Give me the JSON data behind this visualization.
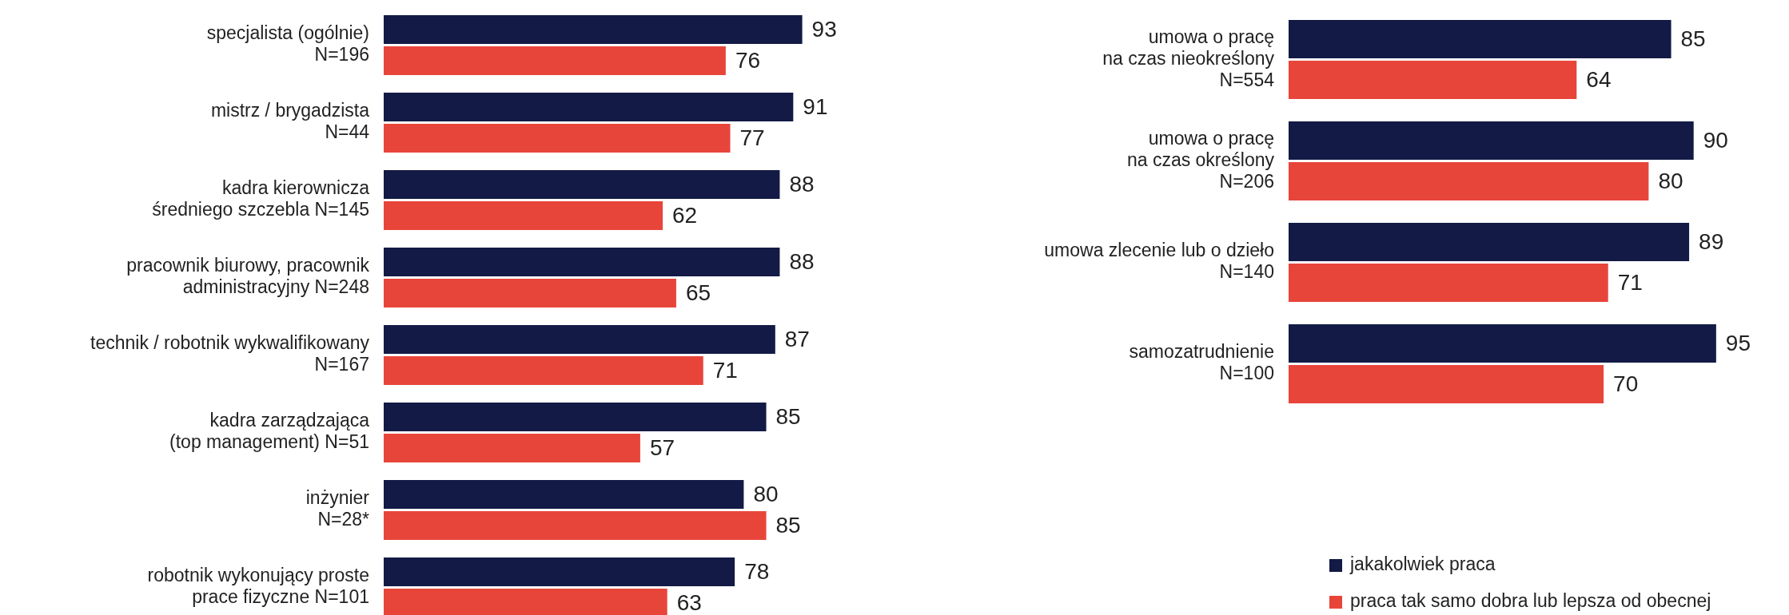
{
  "chart_data": [
    {
      "type": "bar",
      "orientation": "horizontal",
      "data_labels": true,
      "legend": false,
      "categories": [
        "specjalista (ogólnie)\nN=196",
        "mistrz / brygadzista\nN=44",
        "kadra kierownicza\nśredniego szczebla N=145",
        "pracownik biurowy, pracownik\nadministracyjny N=248",
        "technik / robotnik wykwalifikowany\nN=167",
        "kadra zarządzająca\n(top management) N=51",
        "inżynier\nN=28*",
        "robotnik wykonujący proste\nprace fizyczne N=101"
      ],
      "series": [
        {
          "color": "#121a45",
          "values": [
            93,
            91,
            88,
            88,
            87,
            85,
            80,
            78
          ]
        },
        {
          "color": "#e8453a",
          "values": [
            76,
            77,
            62,
            65,
            71,
            57,
            85,
            63
          ]
        }
      ]
    },
    {
      "type": "bar",
      "orientation": "horizontal",
      "data_labels": true,
      "legend": "bottom right",
      "categories": [
        "umowa o pracę\nna czas nieokreślony\nN=554",
        "umowa o pracę\nna czas określony\nN=206",
        "umowa zlecenie lub o dzieło\nN=140",
        "samozatrudnienie\nN=100"
      ],
      "series": [
        {
          "name": "jakakolwiek praca",
          "color": "#121a45",
          "values": [
            85,
            90,
            89,
            95
          ]
        },
        {
          "name": "praca tak samo dobra lub lepsza od obecnej",
          "color": "#e8453a",
          "values": [
            64,
            80,
            71,
            70
          ]
        }
      ]
    }
  ]
}
